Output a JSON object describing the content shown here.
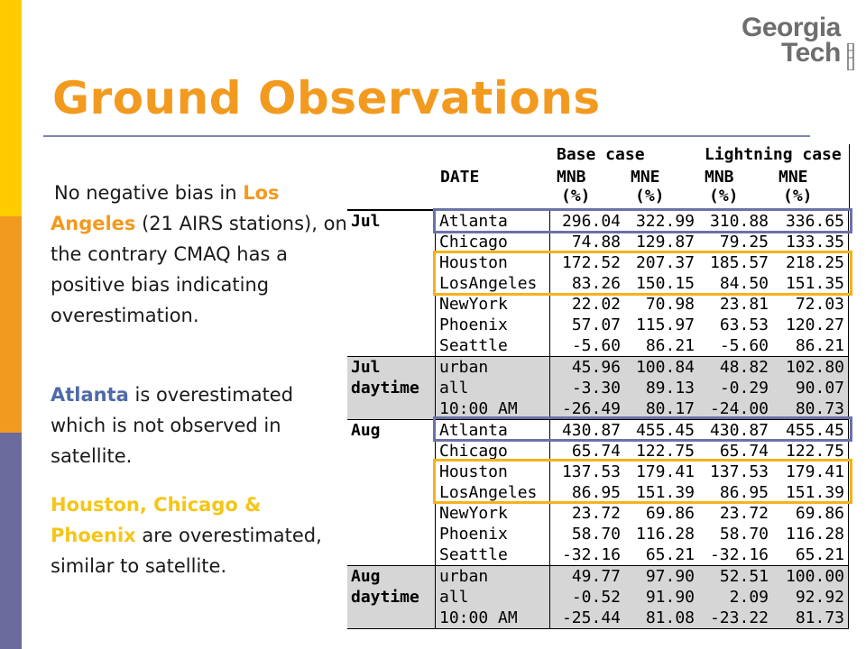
{
  "logo": {
    "word1": "Georgia",
    "word2": "Tech"
  },
  "title": "Ground Observations",
  "p1": {
    "t1": "No negative bias in ",
    "h1": "Los Angeles",
    "t2": " (21 AIRS stations), on the contrary CMAQ has a positive bias indicating overestimation."
  },
  "p2": {
    "h1": "Atlanta",
    "t1": " is overestimated which is not observed in satellite."
  },
  "p3": {
    "h1": "Houston, Chicago & Phoenix",
    "t1": " are overestimated, similar to satellite."
  },
  "table": {
    "header": {
      "date": "DATE",
      "base_case": "Base case",
      "lightning_case": "Lightning case",
      "mnb": "MNB",
      "mne": "MNE",
      "unit": "(%)"
    },
    "groups": [
      {
        "label_lines": [
          "Jul"
        ],
        "shaded": false,
        "rows": [
          {
            "city": "Atlanta",
            "v": [
              "296.04",
              "322.99",
              "310.88",
              "336.65"
            ]
          },
          {
            "city": "Chicago",
            "v": [
              "74.88",
              "129.87",
              "79.25",
              "133.35"
            ]
          },
          {
            "city": "Houston",
            "v": [
              "172.52",
              "207.37",
              "185.57",
              "218.25"
            ]
          },
          {
            "city": "LosAngeles",
            "v": [
              "83.26",
              "150.15",
              "84.50",
              "151.35"
            ]
          },
          {
            "city": "NewYork",
            "v": [
              "22.02",
              "70.98",
              "23.81",
              "72.03"
            ]
          },
          {
            "city": "Phoenix",
            "v": [
              "57.07",
              "115.97",
              "63.53",
              "120.27"
            ]
          },
          {
            "city": "Seattle",
            "v": [
              "-5.60",
              "86.21",
              "-5.60",
              "86.21"
            ]
          }
        ]
      },
      {
        "label_lines": [
          "Jul",
          "daytime"
        ],
        "shaded": true,
        "rows": [
          {
            "city": "urban",
            "v": [
              "45.96",
              "100.84",
              "48.82",
              "102.80"
            ]
          },
          {
            "city": "all",
            "v": [
              "-3.30",
              "89.13",
              "-0.29",
              "90.07"
            ]
          },
          {
            "city": "10:00 AM",
            "v": [
              "-26.49",
              "80.17",
              "-24.00",
              "80.73"
            ]
          }
        ]
      },
      {
        "label_lines": [
          "Aug"
        ],
        "shaded": false,
        "rows": [
          {
            "city": "Atlanta",
            "v": [
              "430.87",
              "455.45",
              "430.87",
              "455.45"
            ]
          },
          {
            "city": "Chicago",
            "v": [
              "65.74",
              "122.75",
              "65.74",
              "122.75"
            ]
          },
          {
            "city": "Houston",
            "v": [
              "137.53",
              "179.41",
              "137.53",
              "179.41"
            ]
          },
          {
            "city": "LosAngeles",
            "v": [
              "86.95",
              "151.39",
              "86.95",
              "151.39"
            ]
          },
          {
            "city": "NewYork",
            "v": [
              "23.72",
              "69.86",
              "23.72",
              "69.86"
            ]
          },
          {
            "city": "Phoenix",
            "v": [
              "58.70",
              "116.28",
              "58.70",
              "116.28"
            ]
          },
          {
            "city": "Seattle",
            "v": [
              "-32.16",
              "65.21",
              "-32.16",
              "65.21"
            ]
          }
        ]
      },
      {
        "label_lines": [
          "Aug",
          "daytime"
        ],
        "shaded": true,
        "rows": [
          {
            "city": "urban",
            "v": [
              "49.77",
              "97.90",
              "52.51",
              "100.00"
            ]
          },
          {
            "city": "all",
            "v": [
              "-0.52",
              "91.90",
              "2.09",
              "92.92"
            ]
          },
          {
            "city": "10:00 AM",
            "v": [
              "-25.44",
              "81.08",
              "-23.22",
              "81.73"
            ]
          }
        ]
      }
    ]
  }
}
